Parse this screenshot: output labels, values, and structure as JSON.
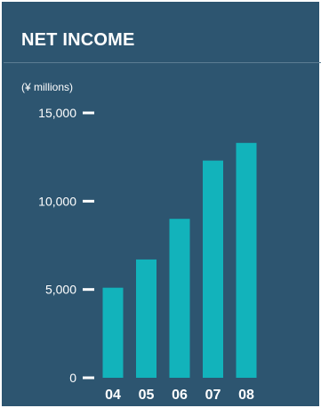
{
  "title": "NET INCOME",
  "unit_label": "(¥ millions)",
  "colors": {
    "background": "#2d5570",
    "bar": "#12b3bb",
    "text": "#ffffff"
  },
  "chart_data": {
    "type": "bar",
    "title": "NET INCOME",
    "ylabel": "(¥ millions)",
    "xlabel": "",
    "categories": [
      "04",
      "05",
      "06",
      "07",
      "08"
    ],
    "values": [
      5100,
      6700,
      9000,
      12300,
      13300
    ],
    "ylim": [
      0,
      15000
    ],
    "yticks": [
      0,
      5000,
      10000,
      15000
    ],
    "ytick_labels": [
      "0",
      "5,000",
      "10,000",
      "15,000"
    ],
    "grid": false,
    "legend": "none"
  }
}
